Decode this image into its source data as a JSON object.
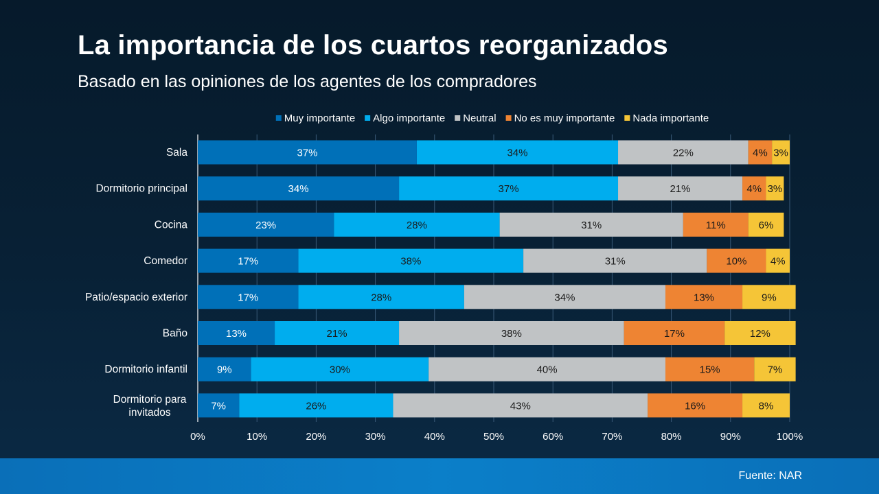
{
  "header": {
    "title": "La importancia de los cuartos reorganizados",
    "subtitle": "Basado en las opiniones de los agentes de los compradores"
  },
  "footer": {
    "source": "Fuente: NAR"
  },
  "chart_data": {
    "type": "bar",
    "orientation": "horizontal",
    "stacked": true,
    "categories": [
      "Sala",
      "Dormitorio principal",
      "Cocina",
      "Comedor",
      "Patio/espacio exterior",
      "Baño",
      "Dormitorio infantil",
      "Dormitorio para invitados"
    ],
    "series": [
      {
        "name": "Muy importante",
        "color": "#0070b8",
        "label_color": "#ffffff",
        "values": [
          37,
          34,
          23,
          17,
          17,
          13,
          9,
          7
        ]
      },
      {
        "name": "Algo importante",
        "color": "#00adee",
        "label_color": "#1a1a1a",
        "values": [
          34,
          37,
          28,
          38,
          28,
          21,
          30,
          26
        ]
      },
      {
        "name": "Neutral",
        "color": "#c0c3c5",
        "label_color": "#1a1a1a",
        "values": [
          22,
          21,
          31,
          31,
          34,
          38,
          40,
          43
        ]
      },
      {
        "name": "No es muy importante",
        "color": "#ee8433",
        "label_color": "#1a1a1a",
        "values": [
          4,
          4,
          11,
          10,
          13,
          17,
          15,
          16
        ]
      },
      {
        "name": "Nada importante",
        "color": "#f5c537",
        "label_color": "#1a1a1a",
        "values": [
          3,
          3,
          6,
          4,
          9,
          12,
          7,
          8
        ]
      }
    ],
    "x_ticks": [
      "0%",
      "10%",
      "20%",
      "30%",
      "40%",
      "50%",
      "60%",
      "70%",
      "80%",
      "90%",
      "100%"
    ],
    "xlim": [
      0,
      100
    ],
    "xlabel": "",
    "ylabel": "",
    "grid": "vertical",
    "legend_position": "top"
  }
}
